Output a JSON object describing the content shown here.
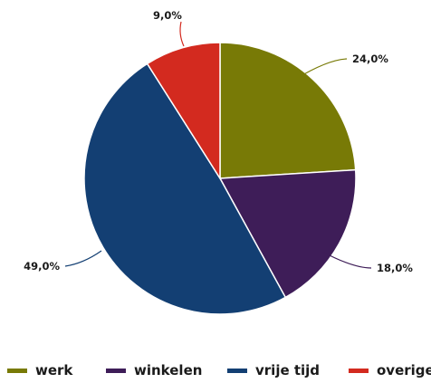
{
  "chart_data": {
    "type": "pie",
    "title": "",
    "start": "12 o'clock",
    "direction": "clockwise",
    "series": [
      {
        "name": "werk",
        "value": 24.0,
        "label": "24,0%",
        "color": "#787A06"
      },
      {
        "name": "winkelen",
        "value": 18.0,
        "label": "18,0%",
        "color": "#3E1D58"
      },
      {
        "name": "vrije tijd",
        "value": 49.0,
        "label": "49,0%",
        "color": "#133F73"
      },
      {
        "name": "overige",
        "value": 9.0,
        "label": "9,0%",
        "color": "#D32A1F"
      }
    ],
    "legend_placement": "bottom"
  }
}
